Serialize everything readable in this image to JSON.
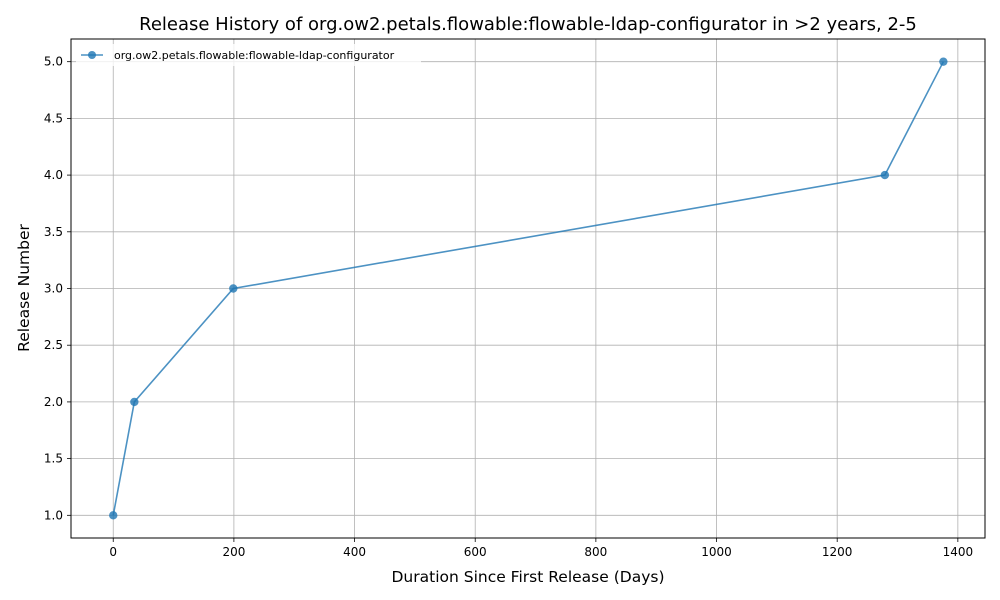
{
  "chart_data": {
    "type": "line",
    "title": "Release History of org.ow2.petals.flowable:flowable-ldap-configurator in >2 years, 2-5",
    "xlabel": "Duration Since First Release (Days)",
    "ylabel": "Release Number",
    "xlim": [
      -70,
      1445
    ],
    "ylim": [
      0.8,
      5.2
    ],
    "xticks": [
      0,
      200,
      400,
      600,
      800,
      1000,
      1200,
      1400
    ],
    "yticks": [
      1.0,
      1.5,
      2.0,
      2.5,
      3.0,
      3.5,
      4.0,
      4.5,
      5.0
    ],
    "xtick_labels": [
      "0",
      "200",
      "400",
      "600",
      "800",
      "1000",
      "1200",
      "1400"
    ],
    "ytick_labels": [
      "1.0",
      "1.5",
      "2.0",
      "2.5",
      "3.0",
      "3.5",
      "4.0",
      "4.5",
      "5.0"
    ],
    "grid": true,
    "legend_position": "top-left",
    "series": [
      {
        "name": "org.ow2.petals.flowable:flowable-ldap-configurator",
        "color": "#1f77b4",
        "x": [
          0,
          35,
          199,
          1279,
          1376
        ],
        "y": [
          1,
          2,
          3,
          4,
          5
        ]
      }
    ]
  }
}
